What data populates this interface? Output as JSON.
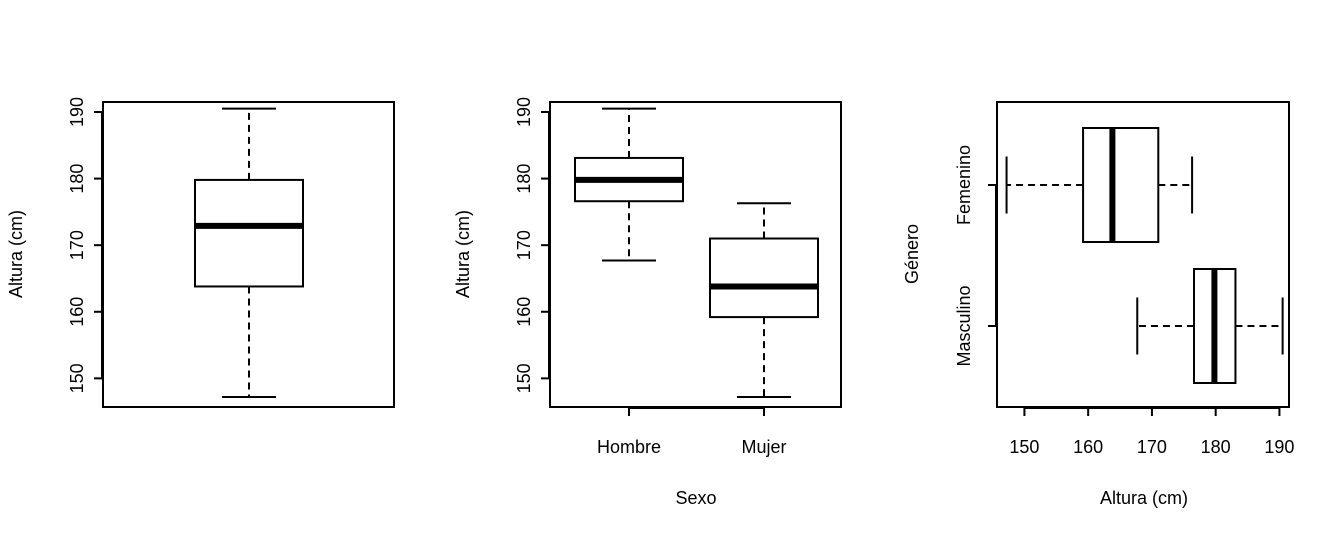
{
  "chart_data": [
    {
      "type": "boxplot",
      "orientation": "vertical",
      "ylabel": "Altura (cm)",
      "xlabel": "",
      "ylim": [
        145.7,
        191.5
      ],
      "yticks": [
        150,
        160,
        170,
        180,
        190
      ],
      "categories": [
        ""
      ],
      "boxes": [
        {
          "min": 147.2,
          "q1": 163.8,
          "median": 172.9,
          "q3": 179.8,
          "max": 190.5
        }
      ]
    },
    {
      "type": "boxplot",
      "orientation": "vertical",
      "ylabel": "Altura (cm)",
      "xlabel": "Sexo",
      "ylim": [
        145.7,
        191.5
      ],
      "yticks": [
        150,
        160,
        170,
        180,
        190
      ],
      "categories": [
        "Hombre",
        "Mujer"
      ],
      "boxes": [
        {
          "min": 167.7,
          "q1": 176.6,
          "median": 179.8,
          "q3": 183.1,
          "max": 190.5
        },
        {
          "min": 147.2,
          "q1": 159.2,
          "median": 163.8,
          "q3": 171.0,
          "max": 176.3
        }
      ]
    },
    {
      "type": "boxplot",
      "orientation": "horizontal",
      "xlabel": "Altura (cm)",
      "ylabel": "Género",
      "xlim": [
        145.7,
        191.5
      ],
      "xticks": [
        150,
        160,
        170,
        180,
        190
      ],
      "categories": [
        "Masculino",
        "Femenino"
      ],
      "boxes": [
        {
          "min": 167.7,
          "q1": 176.6,
          "median": 179.8,
          "q3": 183.1,
          "max": 190.5
        },
        {
          "min": 147.2,
          "q1": 159.2,
          "median": 163.8,
          "q3": 171.0,
          "max": 176.3
        }
      ]
    }
  ]
}
